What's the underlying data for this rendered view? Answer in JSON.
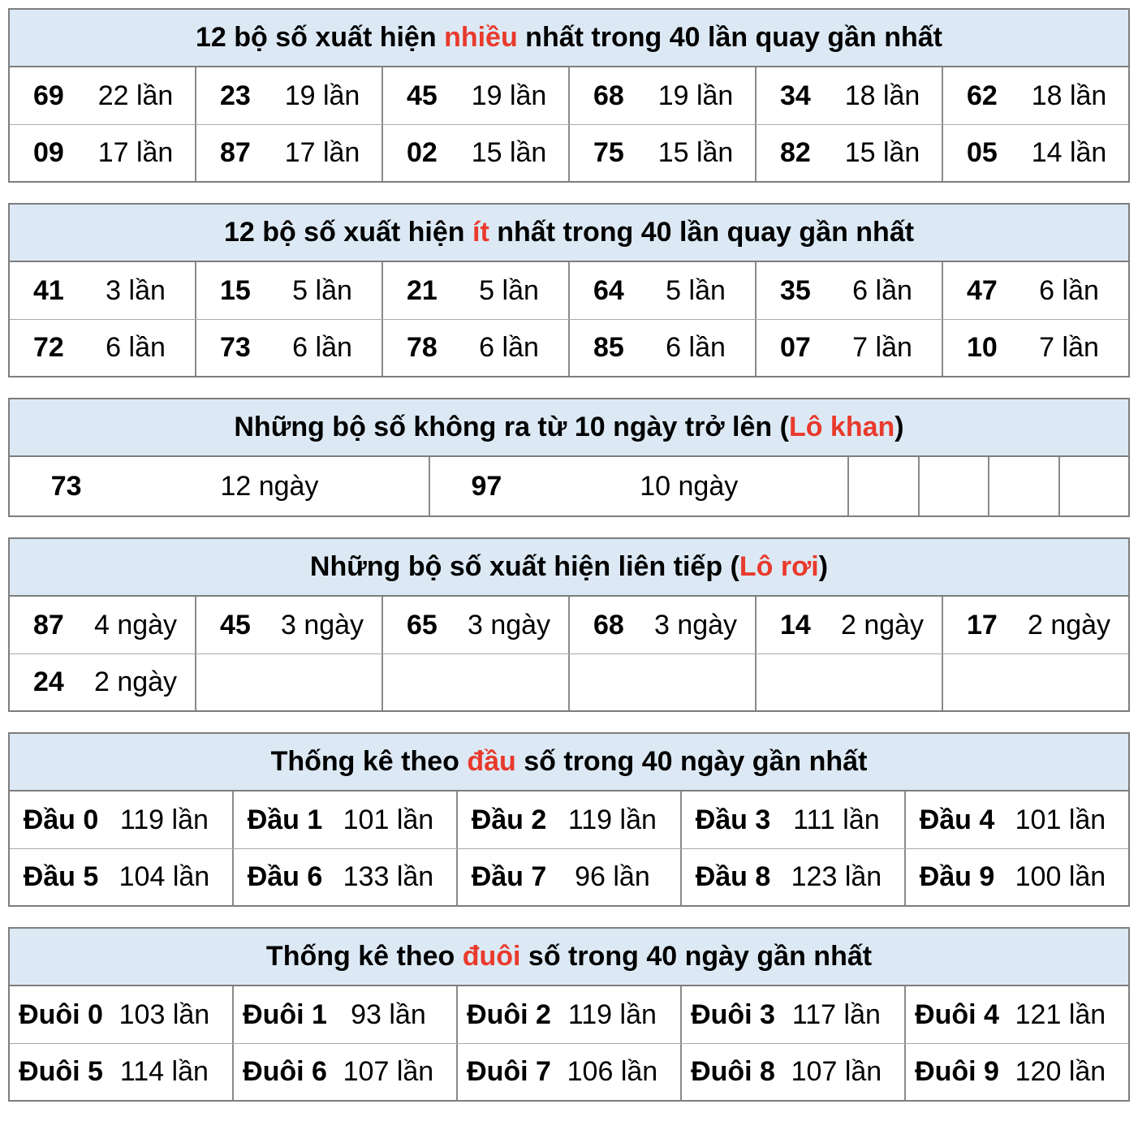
{
  "colors": {
    "accent_red": "#e93a2c",
    "header_blue_bg": "#dce9f5",
    "border_gray": "#8a8a8a",
    "outer_border_gray": "#7d7d7d",
    "text_black": "#000000"
  },
  "most_frequent": {
    "title_pre": "12 bộ số xuất hiện ",
    "title_highlight": "nhiều",
    "title_post": " nhất trong 40 lần quay gần nhất",
    "rows": [
      [
        {
          "num": "69",
          "count": "22 lần"
        },
        {
          "num": "23",
          "count": "19 lần"
        },
        {
          "num": "45",
          "count": "19 lần"
        },
        {
          "num": "68",
          "count": "19 lần"
        },
        {
          "num": "34",
          "count": "18 lần"
        },
        {
          "num": "62",
          "count": "18 lần"
        }
      ],
      [
        {
          "num": "09",
          "count": "17 lần"
        },
        {
          "num": "87",
          "count": "17 lần"
        },
        {
          "num": "02",
          "count": "15 lần"
        },
        {
          "num": "75",
          "count": "15 lần"
        },
        {
          "num": "82",
          "count": "15 lần"
        },
        {
          "num": "05",
          "count": "14 lần"
        }
      ]
    ]
  },
  "least_frequent": {
    "title_pre": "12 bộ số xuất hiện ",
    "title_highlight": "ít",
    "title_post": " nhất trong 40 lần quay gần nhất",
    "rows": [
      [
        {
          "num": "41",
          "count": "3 lần"
        },
        {
          "num": "15",
          "count": "5 lần"
        },
        {
          "num": "21",
          "count": "5 lần"
        },
        {
          "num": "64",
          "count": "5 lần"
        },
        {
          "num": "35",
          "count": "6 lần"
        },
        {
          "num": "47",
          "count": "6 lần"
        }
      ],
      [
        {
          "num": "72",
          "count": "6 lần"
        },
        {
          "num": "73",
          "count": "6 lần"
        },
        {
          "num": "78",
          "count": "6 lần"
        },
        {
          "num": "85",
          "count": "6 lần"
        },
        {
          "num": "07",
          "count": "7 lần"
        },
        {
          "num": "10",
          "count": "7 lần"
        }
      ]
    ]
  },
  "lo_khan": {
    "title_pre": "Những bộ số không ra từ 10 ngày trở lên (",
    "title_highlight": "Lô khan",
    "title_post": ")",
    "pairs": [
      {
        "num": "73",
        "count": "12 ngày"
      },
      {
        "num": "97",
        "count": "10 ngày"
      }
    ]
  },
  "lo_roi": {
    "title_pre": "Những bộ số xuất hiện liên tiếp (",
    "title_highlight": "Lô rơi",
    "title_post": ")",
    "rows": [
      [
        {
          "num": "87",
          "count": "4 ngày"
        },
        {
          "num": "45",
          "count": "3 ngày"
        },
        {
          "num": "65",
          "count": "3 ngày"
        },
        {
          "num": "68",
          "count": "3 ngày"
        },
        {
          "num": "14",
          "count": "2 ngày"
        },
        {
          "num": "17",
          "count": "2 ngày"
        }
      ],
      [
        {
          "num": "24",
          "count": "2 ngày"
        }
      ]
    ]
  },
  "dau": {
    "title_pre": "Thống kê theo ",
    "title_highlight": "đầu",
    "title_post": " số trong 40 ngày gần nhất",
    "rows": [
      [
        {
          "label": "Đầu 0",
          "count": "119 lần"
        },
        {
          "label": "Đầu 1",
          "count": "101 lần"
        },
        {
          "label": "Đầu 2",
          "count": "119 lần"
        },
        {
          "label": "Đầu 3",
          "count": "111 lần"
        },
        {
          "label": "Đầu 4",
          "count": "101 lần"
        }
      ],
      [
        {
          "label": "Đầu 5",
          "count": "104 lần"
        },
        {
          "label": "Đầu 6",
          "count": "133 lần"
        },
        {
          "label": "Đầu 7",
          "count": "96 lần"
        },
        {
          "label": "Đầu 8",
          "count": "123 lần"
        },
        {
          "label": "Đầu 9",
          "count": "100 lần"
        }
      ]
    ]
  },
  "duoi": {
    "title_pre": "Thống kê theo ",
    "title_highlight": "đuôi",
    "title_post": " số trong 40 ngày gần nhất",
    "rows": [
      [
        {
          "label": "Đuôi 0",
          "count": "103 lần"
        },
        {
          "label": "Đuôi 1",
          "count": "93 lần"
        },
        {
          "label": "Đuôi 2",
          "count": "119 lần"
        },
        {
          "label": "Đuôi 3",
          "count": "117 lần"
        },
        {
          "label": "Đuôi 4",
          "count": "121 lần"
        }
      ],
      [
        {
          "label": "Đuôi 5",
          "count": "114 lần"
        },
        {
          "label": "Đuôi 6",
          "count": "107 lần"
        },
        {
          "label": "Đuôi 7",
          "count": "106 lần"
        },
        {
          "label": "Đuôi 8",
          "count": "107 lần"
        },
        {
          "label": "Đuôi 9",
          "count": "120 lần"
        }
      ]
    ]
  }
}
